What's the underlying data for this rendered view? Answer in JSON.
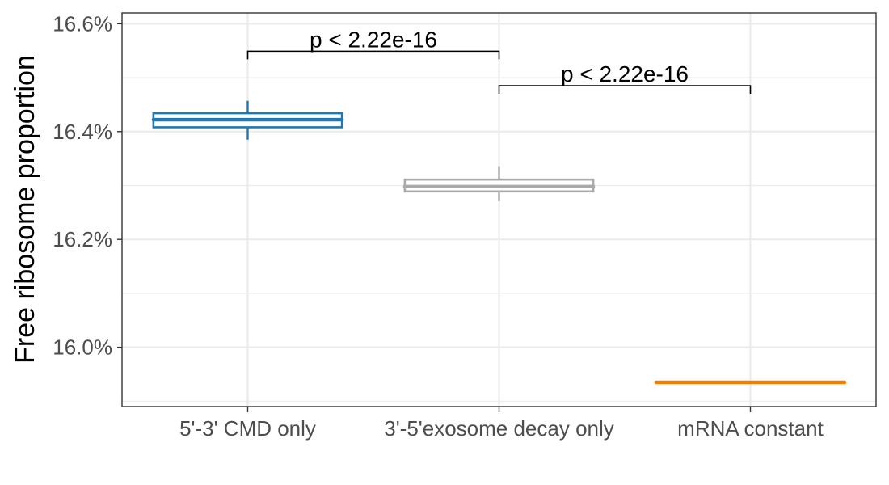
{
  "chart_data": {
    "type": "box",
    "ylabel": "Free ribosome proportion",
    "xlabel": "",
    "ylim": [
      15.89,
      16.62
    ],
    "yticks": [
      16.0,
      16.2,
      16.4,
      16.6
    ],
    "ytick_labels": [
      "16.0%",
      "16.2%",
      "16.4%",
      "16.6%"
    ],
    "ytick_minor": [
      15.9,
      16.1,
      16.3,
      16.5
    ],
    "grid": true,
    "categories": [
      "5'-3' CMD only",
      "3'-5'exosome decay only",
      "mRNA constant"
    ],
    "boxes": [
      {
        "category": "5'-3' CMD only",
        "color": "#1f77b4",
        "whisker_low": 16.385,
        "q1": 16.408,
        "median": 16.422,
        "q3": 16.434,
        "whisker_high": 16.457
      },
      {
        "category": "3'-5'exosome decay only",
        "color": "#a9a9a9",
        "whisker_low": 16.271,
        "q1": 16.289,
        "median": 16.298,
        "q3": 16.311,
        "whisker_high": 16.336
      },
      {
        "category": "mRNA constant",
        "color": "#f57c00",
        "whisker_low": 15.935,
        "q1": 15.935,
        "median": 15.935,
        "q3": 15.935,
        "whisker_high": 15.935
      }
    ],
    "comparisons": [
      {
        "from": 0,
        "to": 1,
        "label": "p < 2.22e-16",
        "y": 16.549
      },
      {
        "from": 1,
        "to": 2,
        "label": "p < 2.22e-16",
        "y": 16.485
      }
    ]
  }
}
